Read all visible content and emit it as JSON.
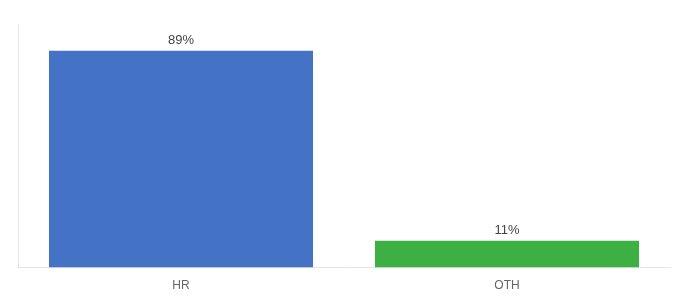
{
  "chart_data": {
    "type": "bar",
    "categories": [
      "HR",
      "OTH"
    ],
    "values": [
      89,
      11
    ],
    "value_labels": [
      "89%",
      "11%"
    ],
    "colors": [
      "#4472c4",
      "#3cb043"
    ],
    "ylim": [
      0,
      100
    ],
    "grid": false,
    "data_labels": true,
    "tick_labels": "x"
  }
}
